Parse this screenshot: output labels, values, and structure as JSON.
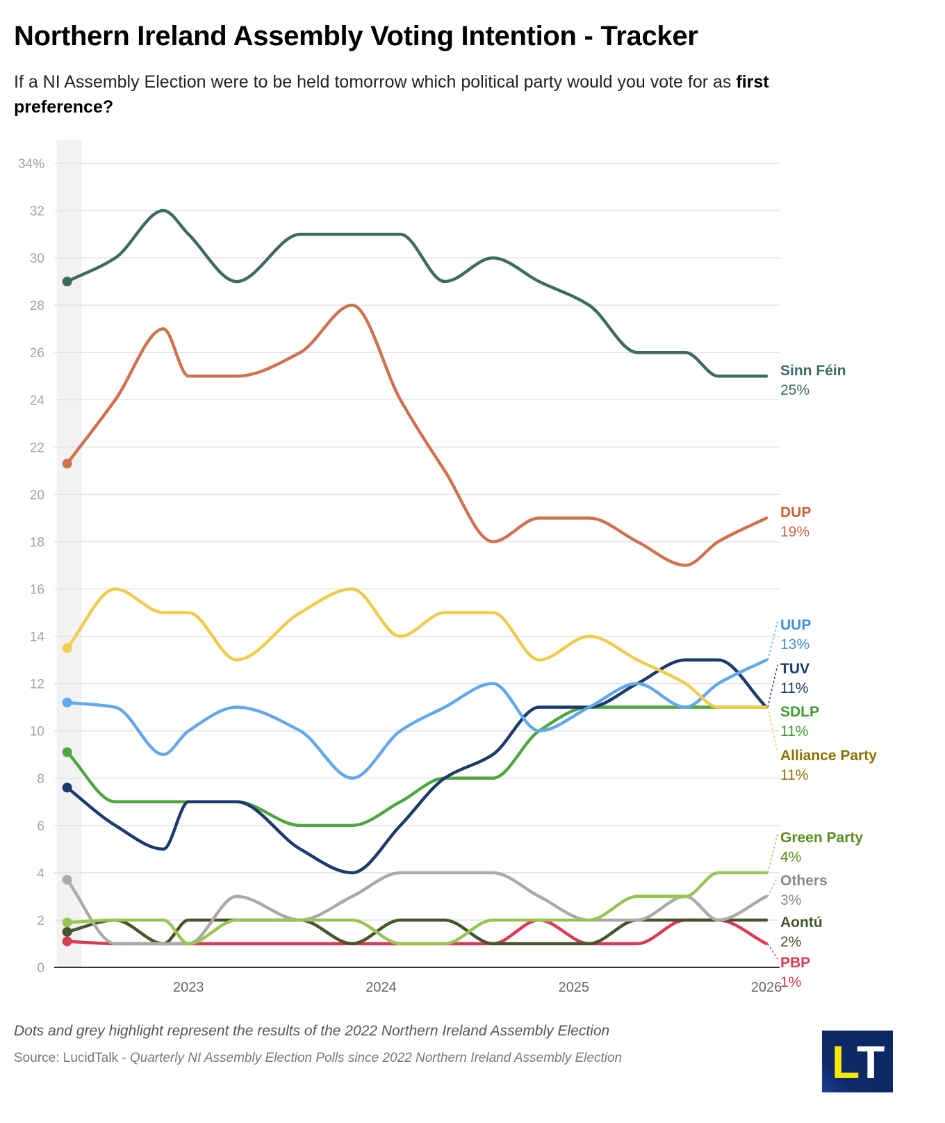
{
  "title": "Northern Ireland Assembly Voting Intention - Tracker",
  "subtitle_main": "If a NI Assembly Election were to be held tomorrow which political party would you vote for as ",
  "subtitle_bold": "first preference?",
  "note": "Dots and grey highlight represent the results of the 2022 Northern Ireland Assembly Election",
  "source_prefix": "Source: LucidTalk - ",
  "source_italic": "Quarterly NI Assembly Election Polls since 2022 Northern Ireland Assembly Election",
  "logo": {
    "letter1": "L",
    "letter2": "T"
  },
  "chart_data": {
    "type": "line",
    "title": "Northern Ireland Assembly Voting Intention - Tracker",
    "xlabel": "",
    "ylabel": "",
    "ylim": [
      0,
      34
    ],
    "xlim": [
      2022.31,
      2026.0
    ],
    "y_ticks": [
      0,
      2,
      4,
      6,
      8,
      10,
      12,
      14,
      16,
      18,
      20,
      22,
      24,
      26,
      28,
      30,
      32,
      34
    ],
    "y_tick_suffix_top": "%",
    "x_ticks": [
      2023,
      2024,
      2025,
      2026
    ],
    "x_tick_labels": [
      "2023",
      "2024",
      "2025",
      "2026"
    ],
    "grid": true,
    "highlight": {
      "label": "2022 Assembly Election",
      "x": 2022.37
    },
    "x": [
      2022.37,
      2022.62,
      2022.87,
      2023.0,
      2023.25,
      2023.58,
      2023.85,
      2024.1,
      2024.33,
      2024.58,
      2024.82,
      2025.08,
      2025.33,
      2025.58,
      2025.75,
      2026.0
    ],
    "series": [
      {
        "name": "Sinn Féin",
        "end_label": "25%",
        "color": "#3d6b62",
        "label_color": "#3d6b62",
        "values": [
          29,
          30,
          32,
          31,
          29,
          31,
          31,
          31,
          29,
          30,
          29,
          28,
          26,
          26,
          25,
          25
        ]
      },
      {
        "name": "DUP",
        "end_label": "19%",
        "color": "#cd7350",
        "label_color": "#c8643d",
        "values": [
          21.3,
          24,
          27,
          25,
          25,
          26,
          28,
          24,
          21,
          18,
          19,
          19,
          18,
          17,
          18,
          19
        ]
      },
      {
        "name": "Alliance Party",
        "end_label": "11%",
        "color": "#f0cc4e",
        "label_color": "#8c7300",
        "values": [
          13.5,
          16,
          15,
          15,
          13,
          15,
          16,
          14,
          15,
          15,
          13,
          14,
          13,
          12,
          11,
          11
        ]
      },
      {
        "name": "UUP",
        "end_label": "13%",
        "color": "#62a8ea",
        "label_color": "#3d8fd6",
        "values": [
          11.2,
          11,
          9,
          10,
          11,
          10,
          8,
          10,
          11,
          12,
          10,
          11,
          12,
          11,
          12,
          13
        ]
      },
      {
        "name": "TUV",
        "end_label": "11%",
        "color": "#1c3a6b",
        "label_color": "#1c3a6b",
        "values": [
          7.6,
          6,
          5,
          7,
          7,
          5,
          4,
          6,
          8,
          9,
          11,
          11,
          12,
          13,
          13,
          11
        ]
      },
      {
        "name": "SDLP",
        "end_label": "11%",
        "color": "#4fa63e",
        "label_color": "#3f9a2e",
        "values": [
          9.1,
          7,
          7,
          7,
          7,
          6,
          6,
          7,
          8,
          8,
          10,
          11,
          11,
          11,
          11,
          11
        ]
      },
      {
        "name": "Green Party",
        "end_label": "4%",
        "color": "#98c453",
        "label_color": "#5a8e1e",
        "values": [
          1.9,
          2,
          2,
          1,
          2,
          2,
          2,
          1,
          1,
          2,
          2,
          2,
          3,
          3,
          4,
          4
        ]
      },
      {
        "name": "Others",
        "end_label": "3%",
        "color": "#aaaaaa",
        "label_color": "#888888",
        "values": [
          3.7,
          1,
          1,
          1,
          3,
          2,
          3,
          4,
          4,
          4,
          3,
          2,
          2,
          3,
          2,
          3
        ]
      },
      {
        "name": "Aontú",
        "end_label": "2%",
        "color": "#45552b",
        "label_color": "#45552b",
        "values": [
          1.5,
          2,
          1,
          2,
          2,
          2,
          1,
          2,
          2,
          1,
          1,
          1,
          2,
          2,
          2,
          2
        ]
      },
      {
        "name": "PBP",
        "end_label": "1%",
        "color": "#d93a56",
        "label_color": "#d93a56",
        "values": [
          1.1,
          1,
          1,
          1,
          1,
          1,
          1,
          1,
          1,
          1,
          2,
          1,
          1,
          2,
          2,
          1
        ]
      }
    ]
  }
}
